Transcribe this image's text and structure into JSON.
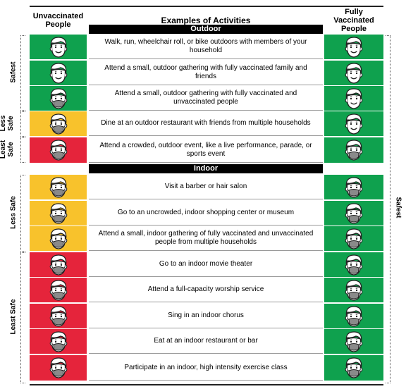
{
  "header": {
    "left": "Unvaccinated People",
    "middle": "Examples of Activities",
    "right": "Fully Vaccinated People"
  },
  "sections": {
    "outdoor": "Outdoor",
    "indoor": "Indoor"
  },
  "left_groups": {
    "safest": "Safest",
    "less_safe_outdoor": "Less Safe",
    "least_safe_outdoor": "Least Safe",
    "less_safe_indoor": "Less Safe",
    "least_safe_indoor": "Least Safe"
  },
  "right_group": "Safest",
  "colors": {
    "green": "#0fa14e",
    "yellow": "#f8c22c",
    "red": "#e5243b"
  },
  "rows": [
    {
      "activity": "Walk, run, wheelchair roll, or bike outdoors with members of your household",
      "unvaccinated_color": "green",
      "unvaccinated_mask": false,
      "vaccinated_color": "green",
      "vaccinated_mask": false
    },
    {
      "activity": "Attend a small, outdoor gathering with fully vaccinated family and friends",
      "unvaccinated_color": "green",
      "unvaccinated_mask": false,
      "vaccinated_color": "green",
      "vaccinated_mask": false
    },
    {
      "activity": "Attend a small, outdoor gathering with fully vaccinated and unvaccinated people",
      "unvaccinated_color": "green",
      "unvaccinated_mask": true,
      "vaccinated_color": "green",
      "vaccinated_mask": false
    },
    {
      "activity": "Dine at an outdoor restaurant with friends from multiple households",
      "unvaccinated_color": "yellow",
      "unvaccinated_mask": true,
      "vaccinated_color": "green",
      "vaccinated_mask": false
    },
    {
      "activity": "Attend a crowded, outdoor event, like a live performance, parade, or sports event",
      "unvaccinated_color": "red",
      "unvaccinated_mask": true,
      "vaccinated_color": "green",
      "vaccinated_mask": true
    },
    {
      "activity": "Visit a barber or hair salon",
      "unvaccinated_color": "yellow",
      "unvaccinated_mask": true,
      "vaccinated_color": "green",
      "vaccinated_mask": true
    },
    {
      "activity": "Go to an uncrowded, indoor shopping center or museum",
      "unvaccinated_color": "yellow",
      "unvaccinated_mask": true,
      "vaccinated_color": "green",
      "vaccinated_mask": true
    },
    {
      "activity": "Attend a small, indoor gathering of fully vaccinated and unvaccinated people from multiple households",
      "unvaccinated_color": "yellow",
      "unvaccinated_mask": true,
      "vaccinated_color": "green",
      "vaccinated_mask": true
    },
    {
      "activity": "Go to an indoor movie theater",
      "unvaccinated_color": "red",
      "unvaccinated_mask": true,
      "vaccinated_color": "green",
      "vaccinated_mask": true
    },
    {
      "activity": "Attend a full-capacity worship service",
      "unvaccinated_color": "red",
      "unvaccinated_mask": true,
      "vaccinated_color": "green",
      "vaccinated_mask": true
    },
    {
      "activity": "Sing in an indoor chorus",
      "unvaccinated_color": "red",
      "unvaccinated_mask": true,
      "vaccinated_color": "green",
      "vaccinated_mask": true
    },
    {
      "activity": "Eat at an indoor restaurant or bar",
      "unvaccinated_color": "red",
      "unvaccinated_mask": true,
      "vaccinated_color": "green",
      "vaccinated_mask": true
    },
    {
      "activity": "Participate in an indoor, high intensity exercise class",
      "unvaccinated_color": "red",
      "unvaccinated_mask": true,
      "vaccinated_color": "green",
      "vaccinated_mask": true
    }
  ]
}
